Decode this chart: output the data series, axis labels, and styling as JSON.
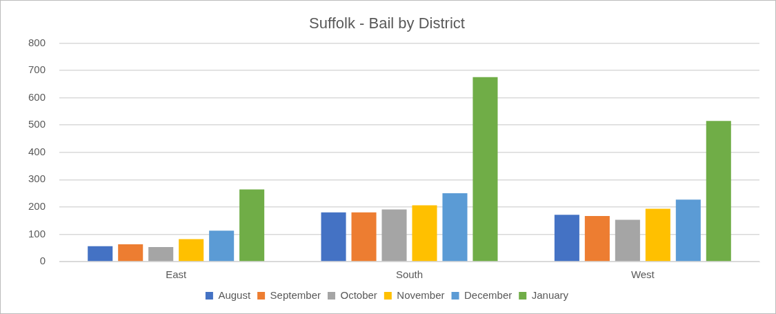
{
  "chart_data": {
    "type": "bar",
    "title": "Suffolk - Bail by District",
    "categories": [
      "East",
      "South",
      "West"
    ],
    "series": [
      {
        "name": "August",
        "color": "#4472c4",
        "values": [
          56,
          180,
          171
        ]
      },
      {
        "name": "September",
        "color": "#ed7d31",
        "values": [
          63,
          180,
          167
        ]
      },
      {
        "name": "October",
        "color": "#a5a5a5",
        "values": [
          53,
          191,
          153
        ]
      },
      {
        "name": "November",
        "color": "#ffc000",
        "values": [
          82,
          206,
          193
        ]
      },
      {
        "name": "December",
        "color": "#5b9bd5",
        "values": [
          113,
          250,
          227
        ]
      },
      {
        "name": "January",
        "color": "#70ad47",
        "values": [
          264,
          675,
          515
        ]
      }
    ],
    "ylim": [
      0,
      800
    ],
    "yticks": [
      0,
      100,
      200,
      300,
      400,
      500,
      600,
      700,
      800
    ],
    "grid": "y",
    "legend": "bottom"
  }
}
